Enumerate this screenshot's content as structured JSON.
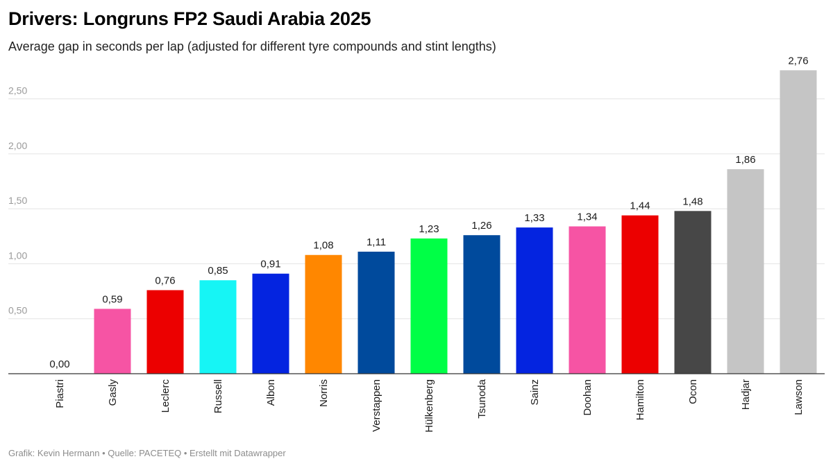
{
  "header": {
    "title": "Drivers: Longruns FP2 Saudi Arabia 2025",
    "subtitle": "Average gap in seconds per lap (adjusted for different tyre compounds and stint lengths)"
  },
  "footer": {
    "credit": "Grafik: Kevin Hermann • Quelle: PACETEQ • Erstellt mit Datawrapper"
  },
  "chart_data": {
    "type": "bar",
    "title": "Drivers: Longruns FP2 Saudi Arabia 2025",
    "subtitle": "Average gap in seconds per lap (adjusted for different tyre compounds and stint lengths)",
    "xlabel": "",
    "ylabel": "",
    "ylim": [
      0,
      2.8
    ],
    "yticks": [
      0,
      0.5,
      1.0,
      1.5,
      2.0,
      2.5
    ],
    "ytick_labels": [
      "0,00",
      "0,50",
      "1,00",
      "1,50",
      "2,00",
      "2,50"
    ],
    "grid": true,
    "legend": "none",
    "categories": [
      "Piastri",
      "Gasly",
      "Leclerc",
      "Russell",
      "Albon",
      "Norris",
      "Verstappen",
      "Hülkenberg",
      "Tsunoda",
      "Sainz",
      "Doohan",
      "Hamilton",
      "Ocon",
      "Hadjar",
      "Lawson"
    ],
    "values": [
      0.0,
      0.59,
      0.76,
      0.85,
      0.91,
      1.08,
      1.11,
      1.23,
      1.26,
      1.33,
      1.34,
      1.44,
      1.48,
      1.86,
      2.76
    ],
    "value_labels": [
      "0,00",
      "0,59",
      "0,76",
      "0,85",
      "0,91",
      "1,08",
      "1,11",
      "1,23",
      "1,26",
      "1,33",
      "1,34",
      "1,44",
      "1,48",
      "1,86",
      "2,76"
    ],
    "colors": [
      "#f78b1f",
      "#f654a4",
      "#ec0000",
      "#16f5f5",
      "#0424e0",
      "#ff8700",
      "#004a9c",
      "#00ff46",
      "#004a9c",
      "#0424e0",
      "#f654a4",
      "#ec0000",
      "#474747",
      "#c5c5c5",
      "#c5c5c5"
    ]
  }
}
